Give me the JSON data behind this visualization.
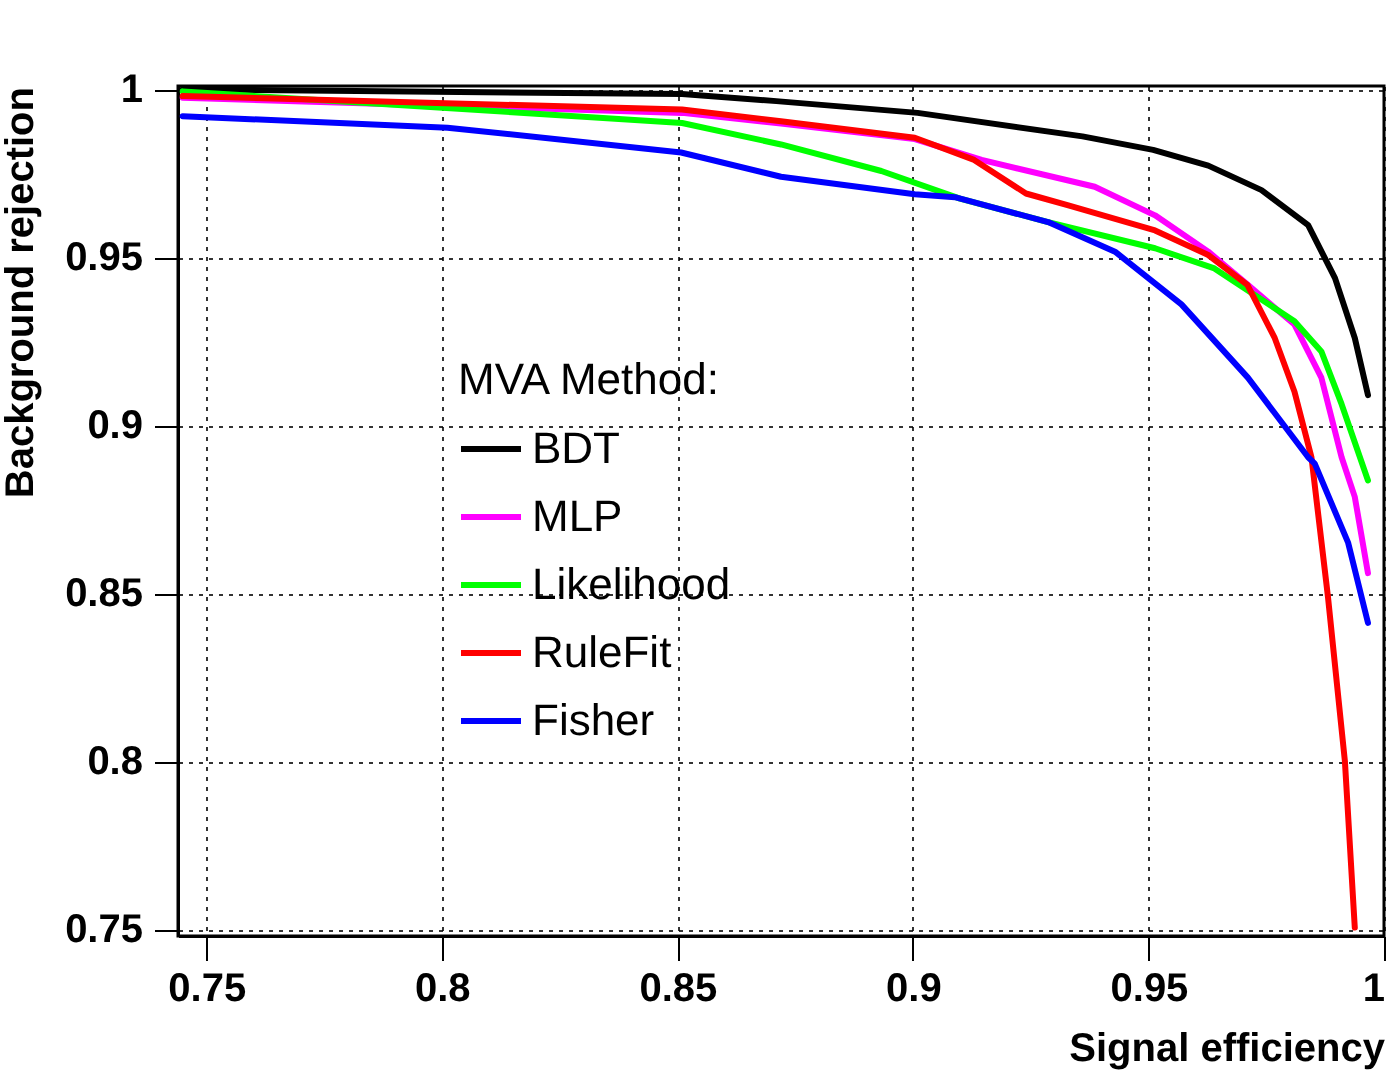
{
  "chart_data": {
    "type": "line",
    "xlabel": "Signal efficiency",
    "ylabel": "Background rejection",
    "legend_title": "MVA Method:",
    "xlim": [
      0.744,
      1.0
    ],
    "ylim": [
      0.748,
      1.001
    ],
    "xticks": [
      0.75,
      0.8,
      0.85,
      0.9,
      0.95,
      1
    ],
    "yticks": [
      0.75,
      0.8,
      0.85,
      0.9,
      0.95,
      1
    ],
    "grid": true,
    "legend": "left",
    "marker": "none",
    "line_style": "solid",
    "series": [
      {
        "name": "BDT",
        "color": "#000000",
        "x": [
          0.745,
          0.851,
          0.871,
          0.901,
          0.936,
          0.951,
          0.9627,
          0.974,
          0.9839,
          0.9896,
          0.9938,
          0.9966
        ],
        "values": [
          1.0,
          0.9986,
          0.9965,
          0.993,
          0.986,
          0.982,
          0.9773,
          0.97,
          0.9596,
          0.9438,
          0.926,
          0.909
        ]
      },
      {
        "name": "MLP",
        "color": "#ff00ff",
        "x": [
          0.745,
          0.851,
          0.872,
          0.9004,
          0.9146,
          0.9386,
          0.9514,
          0.9627,
          0.9711,
          0.981,
          0.9867,
          0.991,
          0.9938,
          0.9966
        ],
        "values": [
          0.9975,
          0.993,
          0.9898,
          0.9852,
          0.979,
          0.971,
          0.9625,
          0.9517,
          0.9418,
          0.93,
          0.9142,
          0.8905,
          0.8787,
          0.856
        ]
      },
      {
        "name": "Likelihood",
        "color": "#00ff00",
        "x": [
          0.745,
          0.851,
          0.872,
          0.8933,
          0.91,
          0.9287,
          0.9514,
          0.964,
          0.981,
          0.9867,
          0.991,
          0.9966
        ],
        "values": [
          0.9994,
          0.99,
          0.9836,
          0.9757,
          0.9675,
          0.9605,
          0.9527,
          0.9467,
          0.931,
          0.922,
          0.9063,
          0.8836
        ]
      },
      {
        "name": "RuleFit",
        "color": "#ff0000",
        "x": [
          0.745,
          0.851,
          0.872,
          0.9004,
          0.913,
          0.924,
          0.933,
          0.9514,
          0.9627,
          0.971,
          0.9768,
          0.981,
          0.9846,
          0.9881,
          0.9917,
          0.9938
        ],
        "values": [
          0.998,
          0.994,
          0.9905,
          0.9856,
          0.979,
          0.969,
          0.9655,
          0.958,
          0.9507,
          0.9418,
          0.926,
          0.91,
          0.8905,
          0.849,
          0.8,
          0.7505
        ]
      },
      {
        "name": "Fisher",
        "color": "#0000ff",
        "x": [
          0.745,
          0.8012,
          0.8508,
          0.872,
          0.9004,
          0.9089,
          0.9287,
          0.9429,
          0.957,
          0.9711,
          0.9839,
          0.9853,
          0.9924,
          0.9966
        ],
        "values": [
          0.992,
          0.9886,
          0.9812,
          0.974,
          0.9688,
          0.9679,
          0.9605,
          0.9517,
          0.936,
          0.9142,
          0.8905,
          0.8886,
          0.865,
          0.8412
        ]
      }
    ]
  }
}
